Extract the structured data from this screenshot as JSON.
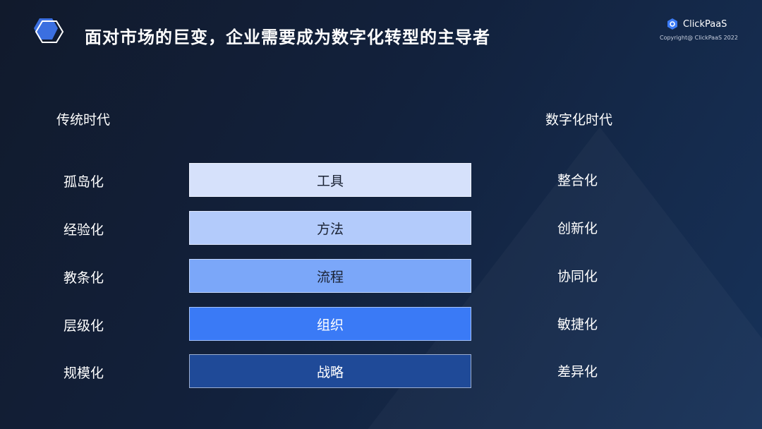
{
  "title": "面对市场的巨变，企业需要成为数字化转型的主导者",
  "logo": {
    "name": "ClickPaaS",
    "copyright": "Copyright@ ClickPaaS 2022"
  },
  "left_header": "传统时代",
  "right_header": "数字化时代",
  "rows": [
    {
      "left": "孤岛化",
      "center": "工具",
      "right": "整合化",
      "color": "#d6e1fb",
      "text_color": "#1a2233"
    },
    {
      "left": "经验化",
      "center": "方法",
      "right": "创新化",
      "color": "#b3cbfb",
      "text_color": "#1a2233"
    },
    {
      "left": "教条化",
      "center": "流程",
      "right": "协同化",
      "color": "#7ba7f9",
      "text_color": "#1a2233"
    },
    {
      "left": "层级化",
      "center": "组织",
      "right": "敏捷化",
      "color": "#3a7af6",
      "text_color": "#ffffff"
    },
    {
      "left": "规模化",
      "center": "战略",
      "right": "差异化",
      "color": "#1f4a98",
      "text_color": "#ffffff"
    }
  ]
}
